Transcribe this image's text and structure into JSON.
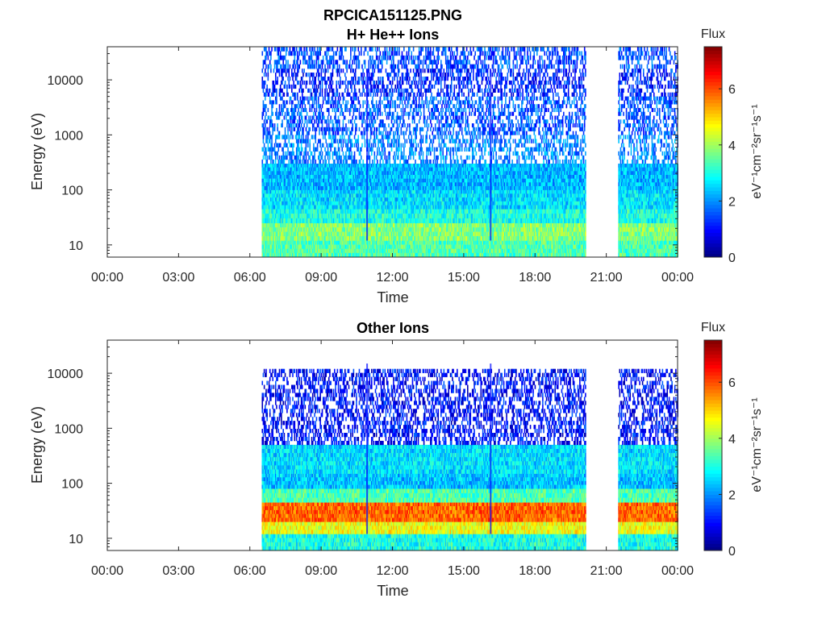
{
  "figure": {
    "title_line1": "RPCICA151125.PNG",
    "colormap": [
      "#00007f",
      "#0000ff",
      "#007fff",
      "#00ffff",
      "#7fff7f",
      "#ffff00",
      "#ff7f00",
      "#ff0000",
      "#7f0000"
    ]
  },
  "chart_data": [
    {
      "type": "heatmap",
      "title": "H+ He++ Ions",
      "xlabel": "Time",
      "ylabel": "Energy (eV)",
      "x_ticks": [
        "00:00",
        "03:00",
        "06:00",
        "09:00",
        "12:00",
        "15:00",
        "18:00",
        "21:00",
        "00:00"
      ],
      "xlim_hours": [
        0,
        24
      ],
      "y_scale": "log",
      "ylim": [
        6,
        40000
      ],
      "y_ticks": [
        10,
        100,
        1000,
        10000
      ],
      "y_tick_labels": [
        "10",
        "100",
        "1000",
        "10000"
      ],
      "data_intervals_hours": [
        [
          6.5,
          20.1
        ],
        [
          21.5,
          24
        ]
      ],
      "gaps_hours": [
        [
          0,
          6.5
        ],
        [
          20.1,
          21.5
        ]
      ],
      "spikes_hours": [
        10.9,
        16.1
      ],
      "energy_bands": [
        {
          "e_min": 6,
          "e_max": 12,
          "flux": 3.4
        },
        {
          "e_min": 12,
          "e_max": 25,
          "flux": 3.8
        },
        {
          "e_min": 25,
          "e_max": 45,
          "flux": 3.0
        },
        {
          "e_min": 45,
          "e_max": 100,
          "flux": 2.6
        },
        {
          "e_min": 100,
          "e_max": 300,
          "flux": 2.3
        },
        {
          "e_min": 300,
          "e_max": 1000,
          "flux": 1.9
        },
        {
          "e_min": 1000,
          "e_max": 5000,
          "flux": 1.6
        },
        {
          "e_min": 5000,
          "e_max": 16000,
          "flux": 1.2
        },
        {
          "e_min": 16000,
          "e_max": 40000,
          "flux": 1.5
        }
      ],
      "colorbar": {
        "label": "Flux",
        "units": "eV⁻¹cm⁻²sr⁻¹s⁻¹",
        "range": [
          0,
          7.5
        ],
        "ticks": [
          0,
          2,
          4,
          6
        ],
        "tick_labels": [
          "0",
          "2",
          "4",
          "6"
        ]
      }
    },
    {
      "type": "heatmap",
      "title": "Other Ions",
      "xlabel": "Time",
      "ylabel": "Energy (eV)",
      "x_ticks": [
        "00:00",
        "03:00",
        "06:00",
        "09:00",
        "12:00",
        "15:00",
        "18:00",
        "21:00",
        "00:00"
      ],
      "xlim_hours": [
        0,
        24
      ],
      "y_scale": "log",
      "ylim": [
        6,
        40000
      ],
      "y_ticks": [
        10,
        100,
        1000,
        10000
      ],
      "y_tick_labels": [
        "10",
        "100",
        "1000",
        "10000"
      ],
      "data_intervals_hours": [
        [
          6.5,
          20.1
        ],
        [
          21.5,
          24
        ]
      ],
      "gaps_hours": [
        [
          0,
          6.5
        ],
        [
          20.1,
          21.5
        ]
      ],
      "spikes_hours": [
        10.9,
        16.1
      ],
      "energy_bands": [
        {
          "e_min": 6,
          "e_max": 12,
          "flux": 3.0
        },
        {
          "e_min": 12,
          "e_max": 20,
          "flux": 4.6
        },
        {
          "e_min": 20,
          "e_max": 45,
          "flux": 5.8
        },
        {
          "e_min": 45,
          "e_max": 80,
          "flux": 3.4
        },
        {
          "e_min": 80,
          "e_max": 150,
          "flux": 2.4
        },
        {
          "e_min": 150,
          "e_max": 500,
          "flux": 2.6
        },
        {
          "e_min": 500,
          "e_max": 12000,
          "flux": 1.0
        }
      ],
      "colorbar": {
        "label": "Flux",
        "units": "eV⁻¹cm⁻²sr⁻¹s⁻¹",
        "range": [
          0,
          7.5
        ],
        "ticks": [
          0,
          2,
          4,
          6
        ],
        "tick_labels": [
          "0",
          "2",
          "4",
          "6"
        ]
      }
    }
  ]
}
